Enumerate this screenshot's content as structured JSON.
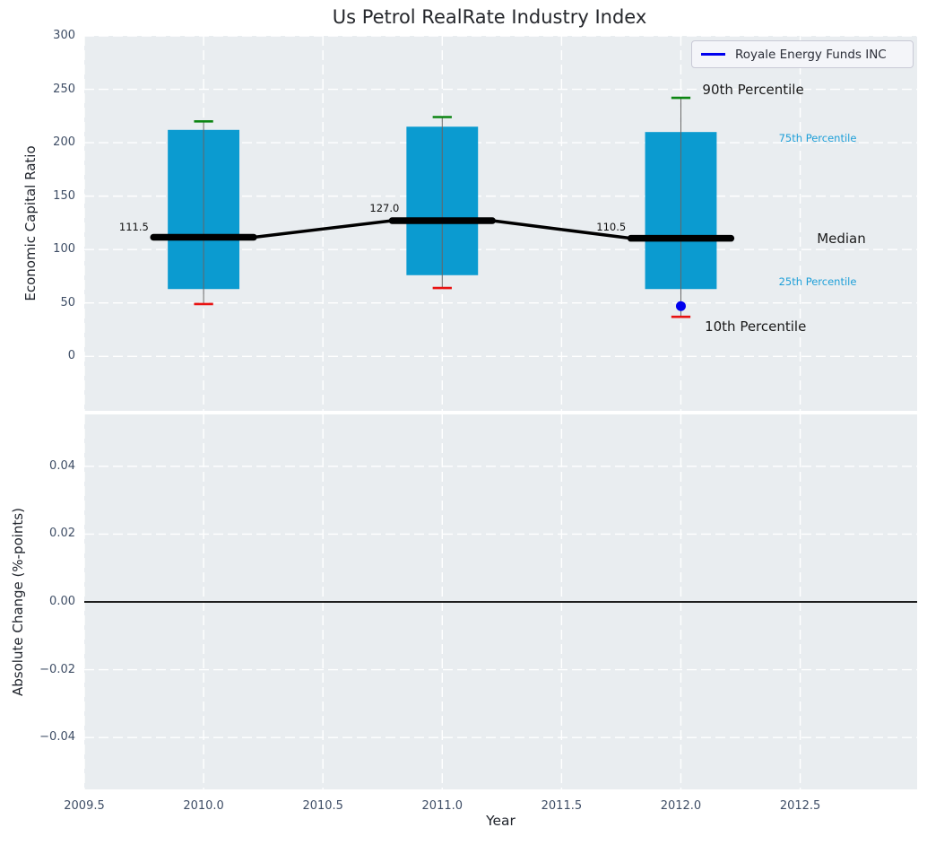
{
  "title": "Us Petrol RealRate Industry Index",
  "colors": {
    "axes_background": "#e9edf0",
    "grid": "#ffffff",
    "box_fill": "#0b9bd0",
    "whisker": "#666666",
    "cap_90th": "#0c8512",
    "cap_10th": "#e81212",
    "median_line": "#000000",
    "royale_series": "#0000ee",
    "tick_label": "#3f4e66",
    "axis_label": "#20242c",
    "title_color": "#26282d",
    "annotation_dark": "#1a1a1a",
    "annotation_cyan": "#1e9fd8",
    "median_value_label": "#101010",
    "zero_line": "#000000"
  },
  "chart_data": {
    "type": "boxplot-timeseries-with-change-panel",
    "x_axis": {
      "label": "Year",
      "lim": [
        2009.5,
        2012.99
      ],
      "ticks": [
        {
          "label": "2009.5",
          "value": 2009.5
        },
        {
          "label": "2010.0",
          "value": 2010.0
        },
        {
          "label": "2010.5",
          "value": 2010.5
        },
        {
          "label": "2011.0",
          "value": 2011.0
        },
        {
          "label": "2011.5",
          "value": 2011.5
        },
        {
          "label": "2012.0",
          "value": 2012.0
        },
        {
          "label": "2012.5",
          "value": 2012.5
        }
      ]
    },
    "panels": [
      {
        "ylabel": "Economic Capital Ratio",
        "ylim": [
          -51,
          300
        ],
        "yticks": [
          {
            "label": "300",
            "value": 300
          },
          {
            "label": "250",
            "value": 250
          },
          {
            "label": "200",
            "value": 200
          },
          {
            "label": "150",
            "value": 150
          },
          {
            "label": "100",
            "value": 100
          },
          {
            "label": "50",
            "value": 50
          },
          {
            "label": "0",
            "value": 0
          }
        ],
        "grid": "dashed-white",
        "legend": {
          "label": "Royale Energy Funds INC",
          "position": "upper right"
        },
        "boxes": [
          {
            "year": 2010,
            "p10": 49,
            "p25": 63,
            "median": 111.5,
            "p75": 212,
            "p90": 220
          },
          {
            "year": 2011,
            "p10": 64,
            "p25": 76,
            "median": 127.0,
            "p75": 215,
            "p90": 224
          },
          {
            "year": 2012,
            "p10": 37,
            "p25": 63,
            "median": 110.5,
            "p75": 210,
            "p90": 242
          }
        ],
        "median_value_labels": [
          {
            "text": "111.5",
            "x": 2009.77,
            "y": 121
          },
          {
            "text": "127.0",
            "x": 2010.82,
            "y": 139
          },
          {
            "text": "110.5",
            "x": 2011.77,
            "y": 121
          }
        ],
        "series": [
          {
            "name": "Royale Energy Funds INC",
            "type": "scatter",
            "points": [
              {
                "x": 2012,
                "y": 47
              }
            ]
          }
        ],
        "annotations": [
          {
            "text": "90th Percentile",
            "x": 2012.09,
            "y": 250,
            "size": 15,
            "color": "dark"
          },
          {
            "text": "75th Percentile",
            "x": 2012.41,
            "y": 204,
            "size": 11.5,
            "color": "cyan"
          },
          {
            "text": "Median",
            "x": 2012.57,
            "y": 110.5,
            "size": 15,
            "color": "dark"
          },
          {
            "text": "25th Percentile",
            "x": 2012.41,
            "y": 70,
            "size": 11.5,
            "color": "cyan"
          },
          {
            "text": "10th Percentile",
            "x": 2012.1,
            "y": 28,
            "size": 15,
            "color": "dark"
          }
        ],
        "geometry_years": {
          "box_half_width": 0.15,
          "median_half_width": 0.21,
          "cap_half_width": 0.04
        }
      },
      {
        "ylabel": "Absolute Change (%-points)",
        "ylim": [
          -0.0553,
          0.0553
        ],
        "yticks": [
          {
            "label": "0.04",
            "value": 0.04
          },
          {
            "label": "0.02",
            "value": 0.02
          },
          {
            "label": "0.00",
            "value": 0.0
          },
          {
            "label": "−0.02",
            "value": -0.02
          },
          {
            "label": "−0.04",
            "value": -0.04
          }
        ],
        "grid": "dashed-white",
        "zero_line": 0.0
      }
    ]
  }
}
